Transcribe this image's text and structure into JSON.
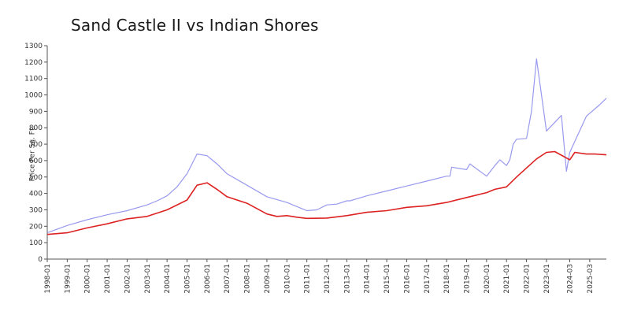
{
  "chart_data": {
    "type": "line",
    "title": "Sand Castle II vs Indian Shores",
    "xlabel": "",
    "ylabel": "Price Per Sq. Ft.",
    "ylim": [
      0,
      1300
    ],
    "yticks": [
      0,
      100,
      200,
      300,
      400,
      500,
      600,
      700,
      800,
      900,
      1000,
      1100,
      1200,
      1300
    ],
    "xticks": [
      "1998-01",
      "1999-01",
      "2000-01",
      "2001-01",
      "2002-01",
      "2003-01",
      "2004-01",
      "2005-01",
      "2006-01",
      "2007-01",
      "2008-01",
      "2009-01",
      "2010-01",
      "2011-01",
      "2012-01",
      "2013-01",
      "2014-01",
      "2015-01",
      "2016-01",
      "2017-01",
      "2018-01",
      "2019-01",
      "2020-01",
      "2021-01",
      "2022-01",
      "2023-01",
      "2024-03",
      "2025-03"
    ],
    "grid": false,
    "series": [
      {
        "color": "#9999ee",
        "x": [
          "1998-01",
          "1999-01",
          "2000-01",
          "2001-01",
          "2002-01",
          "2003-01",
          "2003-07",
          "2004-01",
          "2004-07",
          "2005-01",
          "2005-07",
          "2006-01",
          "2006-07",
          "2007-01",
          "2008-01",
          "2009-01",
          "2010-01",
          "2010-07",
          "2011-01",
          "2011-07",
          "2012-01",
          "2012-07",
          "2013-01",
          "2013-03",
          "2014-01",
          "2015-01",
          "2016-01",
          "2017-01",
          "2018-01",
          "2018-03",
          "2018-04",
          "2019-01",
          "2019-03",
          "2020-01",
          "2020-06",
          "2020-09",
          "2021-01",
          "2021-03",
          "2021-05",
          "2021-07",
          "2022-01",
          "2022-04",
          "2022-07",
          "2023-01",
          "2023-10",
          "2024-01",
          "2024-03",
          "2025-01",
          "2025-09",
          "2026-01"
        ],
        "y": [
          160,
          205,
          240,
          270,
          295,
          330,
          355,
          385,
          440,
          520,
          640,
          630,
          580,
          520,
          450,
          380,
          345,
          320,
          295,
          300,
          330,
          335,
          355,
          355,
          385,
          415,
          445,
          475,
          505,
          505,
          560,
          545,
          580,
          505,
          570,
          605,
          570,
          605,
          700,
          730,
          735,
          900,
          1220,
          780,
          875,
          535,
          650,
          870,
          940,
          980
        ]
      },
      {
        "color": "#dd2222",
        "x": [
          "1998-01",
          "1999-01",
          "2000-01",
          "2001-01",
          "2002-01",
          "2003-01",
          "2004-01",
          "2005-01",
          "2005-07",
          "2006-01",
          "2006-07",
          "2007-01",
          "2008-01",
          "2009-01",
          "2009-07",
          "2010-01",
          "2010-07",
          "2011-01",
          "2012-01",
          "2013-01",
          "2014-01",
          "2015-01",
          "2016-01",
          "2017-01",
          "2018-01",
          "2019-01",
          "2020-01",
          "2020-06",
          "2021-01",
          "2021-07",
          "2022-01",
          "2022-07",
          "2023-01",
          "2023-06",
          "2024-03",
          "2024-06",
          "2025-01",
          "2025-06",
          "2026-01"
        ],
        "y": [
          150,
          160,
          190,
          215,
          245,
          260,
          300,
          360,
          450,
          465,
          425,
          380,
          340,
          275,
          260,
          265,
          255,
          248,
          250,
          265,
          285,
          295,
          315,
          325,
          345,
          375,
          405,
          425,
          440,
          500,
          555,
          610,
          650,
          655,
          605,
          650,
          640,
          640,
          635
        ]
      }
    ]
  }
}
